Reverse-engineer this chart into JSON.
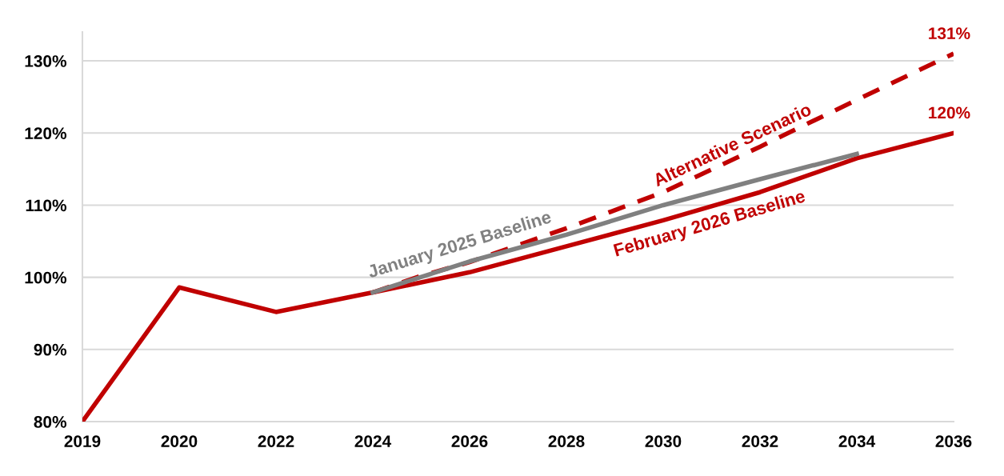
{
  "chart_data": {
    "type": "line",
    "categories": [
      "2019",
      null,
      "2020",
      null,
      "2022",
      null,
      "2024",
      null,
      "2026",
      null,
      "2028",
      null,
      "2030",
      null,
      "2032",
      null,
      "2034",
      null,
      "2036"
    ],
    "series": [
      {
        "name": "January 2025 Baseline",
        "color": "#808080",
        "line_style": "solid",
        "values": [
          null,
          null,
          null,
          null,
          null,
          null,
          97.9,
          null,
          102.2,
          null,
          105.9,
          null,
          110.0,
          null,
          113.6,
          null,
          117.1,
          null,
          null
        ]
      },
      {
        "name": "Alternative Scenario",
        "color": "#c00000",
        "line_style": "dashed",
        "values": [
          null,
          null,
          null,
          null,
          null,
          null,
          97.9,
          100.2,
          102.1,
          null,
          106.8,
          null,
          111.8,
          null,
          118.1,
          null,
          124.6,
          null,
          131
        ],
        "value_labels": [
          null,
          null,
          null,
          null,
          null,
          null,
          null,
          null,
          null,
          null,
          null,
          null,
          null,
          null,
          null,
          null,
          null,
          null,
          "131%"
        ]
      },
      {
        "name": "February 2026 Baseline",
        "color": "#c00000",
        "line_style": "solid",
        "values": [
          80,
          null,
          98.6,
          null,
          95.2,
          null,
          97.9,
          null,
          100.7,
          null,
          104.3,
          null,
          107.9,
          null,
          111.8,
          null,
          116.5,
          null,
          120
        ],
        "value_labels": [
          null,
          null,
          null,
          null,
          null,
          null,
          null,
          null,
          null,
          null,
          null,
          null,
          null,
          null,
          null,
          null,
          null,
          null,
          "120%"
        ]
      }
    ],
    "ylim": [
      80,
      134
    ],
    "yticks": [
      {
        "value": 80,
        "label": "80%"
      },
      {
        "value": 90,
        "label": "90%"
      },
      {
        "value": 100,
        "label": "100%"
      },
      {
        "value": 110,
        "label": "110%"
      },
      {
        "value": 120,
        "label": "120%"
      },
      {
        "value": 130,
        "label": "130%"
      }
    ],
    "grid": "y",
    "legend": false,
    "marker": "none"
  }
}
